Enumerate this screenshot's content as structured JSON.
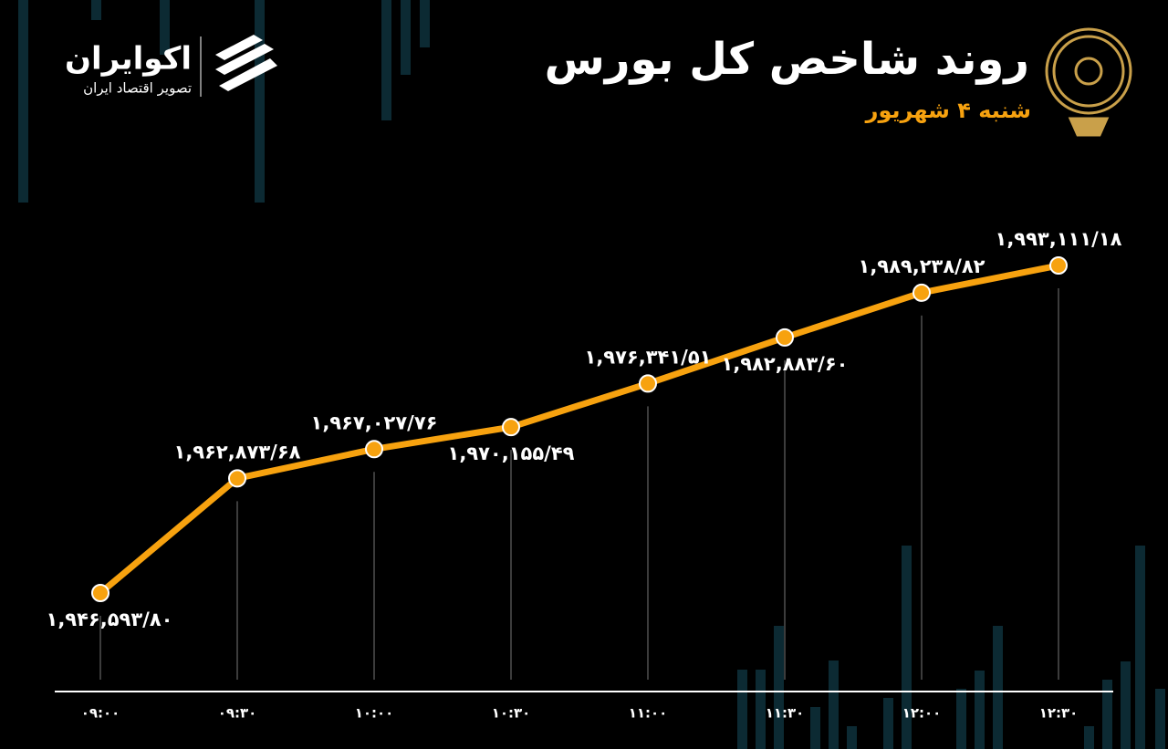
{
  "chart_data": {
    "type": "line",
    "title": "روند شاخص کل بورس",
    "subtitle": "شنبه ۴ شهریور",
    "brand_name": "اکوایران",
    "brand_tagline": "تصویر اقتصاد ایران",
    "categories": [
      "۰۹:۰۰",
      "۰۹:۳۰",
      "۱۰:۰۰",
      "۱۰:۳۰",
      "۱۱:۰۰",
      "۱۱:۳۰",
      "۱۲:۰۰",
      "۱۲:۳۰"
    ],
    "values": [
      1946593.8,
      1962873.68,
      1967027.76,
      1970155.49,
      1976341.51,
      1982883.6,
      1989238.82,
      1993111.18
    ],
    "value_labels": [
      "۱,۹۴۶,۵۹۳/۸۰",
      "۱,۹۶۲,۸۷۳/۶۸",
      "۱,۹۶۷,۰۲۷/۷۶",
      "۱,۹۷۰,۱۵۵/۴۹",
      "۱,۹۷۶,۳۴۱/۵۱",
      "۱,۹۸۲,۸۸۳/۶۰",
      "۱,۹۸۹,۲۳۸/۸۲",
      "۱,۹۹۳,۱۱۱/۱۸"
    ],
    "color": "#f7a20f"
  }
}
